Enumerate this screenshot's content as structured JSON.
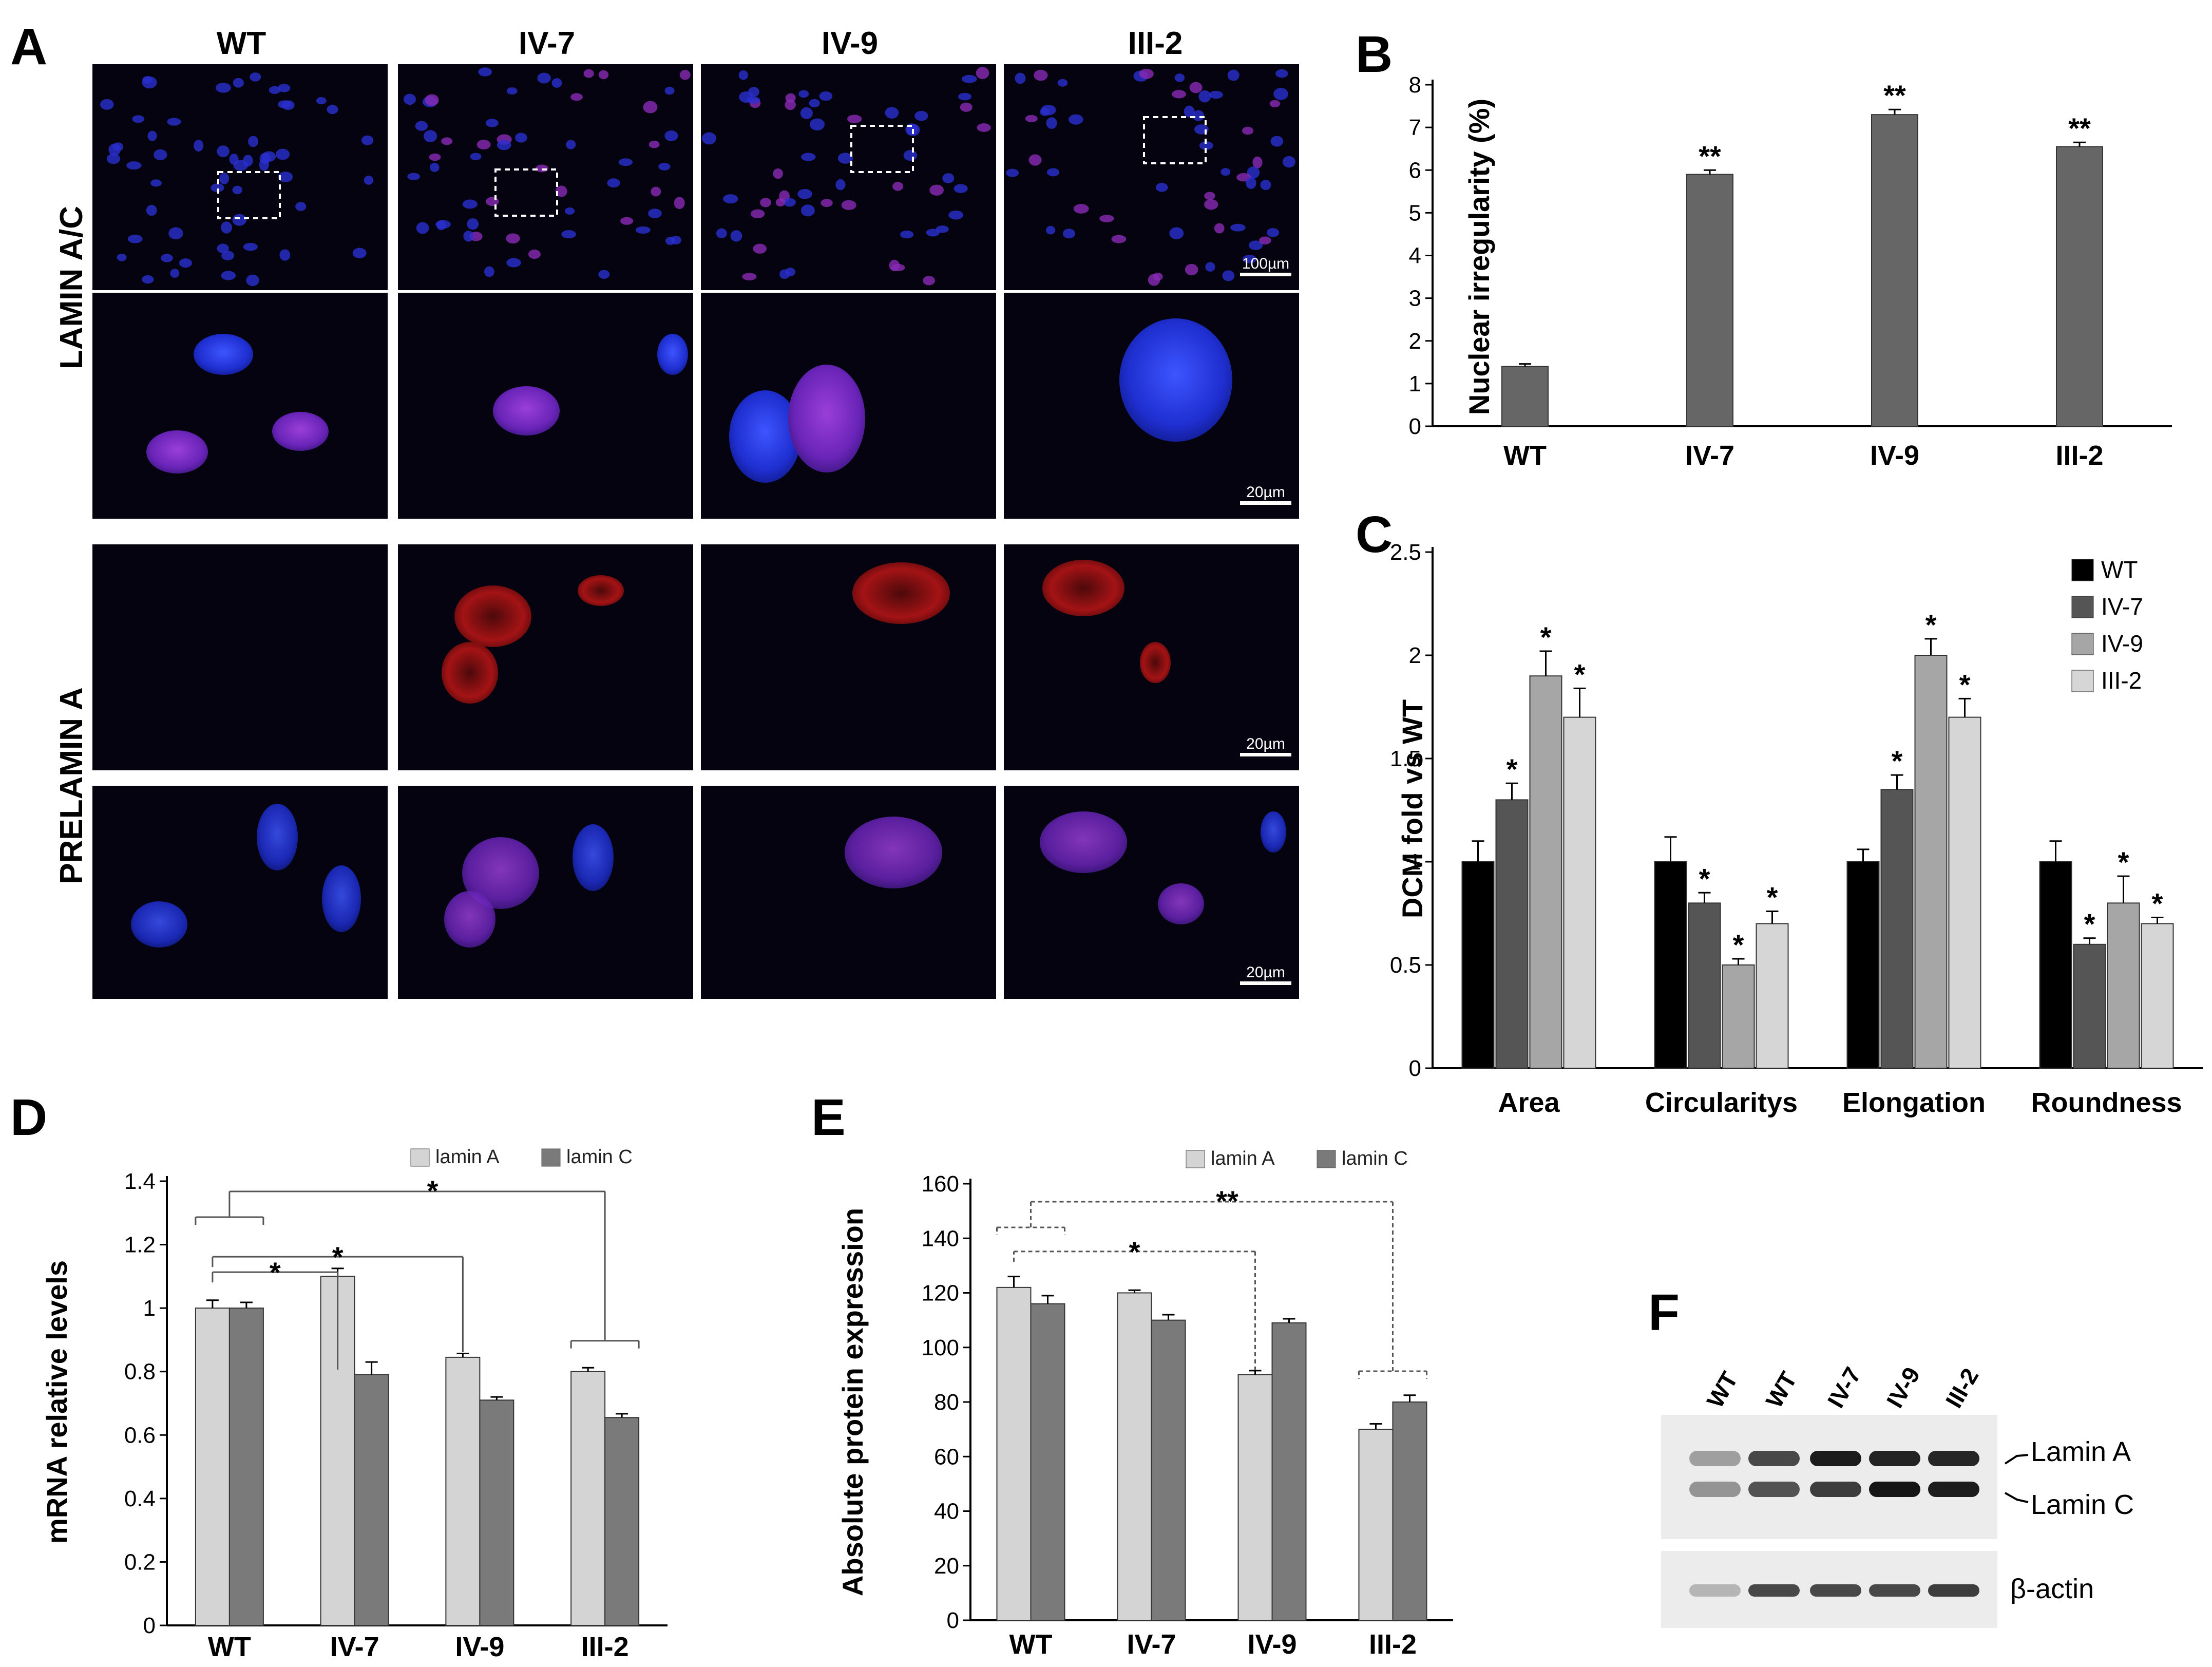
{
  "panel_a": {
    "label": "A",
    "columns": [
      "WT",
      "IV-7",
      "IV-9",
      "III-2"
    ],
    "rows": [
      "LAMIN A/C",
      "PRELAMIN A"
    ],
    "scale_bars": [
      "100µm",
      "20µm",
      "20µm",
      "20µm"
    ]
  },
  "panel_f": {
    "label": "F",
    "lanes": [
      "WT",
      "WT",
      "IV-7",
      "IV-9",
      "III-2"
    ],
    "bands": [
      "Lamin A",
      "Lamin C",
      "β-actin"
    ]
  },
  "chart_data": [
    {
      "panel": "B",
      "type": "bar",
      "categories": [
        "WT",
        "IV-7",
        "IV-9",
        "III-2"
      ],
      "values": [
        1.4,
        5.9,
        7.3,
        6.55
      ],
      "errors": [
        0.06,
        0.1,
        0.12,
        0.1
      ],
      "significance": [
        "",
        "**",
        "**",
        "**"
      ],
      "ylabel": "Nuclear irregularity (%)",
      "ylim": [
        0,
        8
      ],
      "yticks": [
        "0",
        "1",
        "2",
        "3",
        "4",
        "5",
        "6",
        "7",
        "8"
      ],
      "colors": [
        "#666666"
      ]
    },
    {
      "panel": "C",
      "type": "bar",
      "categories": [
        "Area",
        "Circularitys",
        "Elongation",
        "Roundness"
      ],
      "series": [
        {
          "name": "WT",
          "values": [
            1.0,
            1.0,
            1.0,
            1.0
          ],
          "errors": [
            0.1,
            0.12,
            0.06,
            0.1
          ],
          "significance": [
            "",
            "",
            "",
            ""
          ]
        },
        {
          "name": "IV-7",
          "values": [
            1.3,
            0.8,
            1.35,
            0.6
          ],
          "errors": [
            0.08,
            0.05,
            0.07,
            0.03
          ],
          "significance": [
            "*",
            "*",
            "*",
            "*"
          ]
        },
        {
          "name": "IV-9",
          "values": [
            1.9,
            0.5,
            2.0,
            0.8
          ],
          "errors": [
            0.12,
            0.03,
            0.08,
            0.13
          ],
          "significance": [
            "*",
            "*",
            "*",
            "*"
          ]
        },
        {
          "name": "III-2",
          "values": [
            1.7,
            0.7,
            1.7,
            0.7
          ],
          "errors": [
            0.14,
            0.06,
            0.09,
            0.03
          ],
          "significance": [
            "*",
            "*",
            "*",
            "*"
          ]
        }
      ],
      "ylabel": "DCM fold vs WT",
      "ylim": [
        0,
        2.5
      ],
      "yticks": [
        "0",
        "0.5",
        "1",
        "1.5",
        "2",
        "2.5"
      ],
      "legend": "top-right",
      "colors": [
        "#000000",
        "#555555",
        "#a6a6a6",
        "#d6d6d6"
      ]
    },
    {
      "panel": "D",
      "type": "bar",
      "categories": [
        "WT",
        "IV-7",
        "IV-9",
        "III-2"
      ],
      "series": [
        {
          "name": "lamin A",
          "values": [
            1.0,
            1.1,
            0.845,
            0.8
          ],
          "errors": [
            0.025,
            0.025,
            0.012,
            0.012
          ]
        },
        {
          "name": "lamin C",
          "values": [
            1.0,
            0.79,
            0.71,
            0.655
          ],
          "errors": [
            0.018,
            0.04,
            0.01,
            0.012
          ]
        }
      ],
      "comparisons": [
        {
          "label": "*",
          "from": "WT",
          "to": "III-2"
        },
        {
          "label": "*",
          "from": "WT",
          "to": "IV-7"
        },
        {
          "label": "*",
          "from": "WT",
          "to": "IV-9"
        }
      ],
      "ylabel": "mRNA relative levels",
      "ylim": [
        0,
        1.4
      ],
      "yticks": [
        "0",
        "0.2",
        "0.4",
        "0.6",
        "0.8",
        "1",
        "1.2",
        "1.4"
      ],
      "legend": "top-right",
      "colors": [
        "#d4d4d4",
        "#7a7a7a"
      ]
    },
    {
      "panel": "E",
      "type": "bar",
      "categories": [
        "WT",
        "IV-7",
        "IV-9",
        "III-2"
      ],
      "series": [
        {
          "name": "lamin A",
          "values": [
            122,
            120,
            90,
            70
          ],
          "errors": [
            4,
            1,
            1.5,
            2
          ]
        },
        {
          "name": "lamin C",
          "values": [
            116,
            110,
            109,
            80
          ],
          "errors": [
            3,
            2,
            1.5,
            2.5
          ]
        }
      ],
      "comparisons": [
        {
          "label": "**",
          "from": "WT",
          "to": "III-2"
        },
        {
          "label": "*",
          "from": "WT",
          "to": "IV-9"
        }
      ],
      "ylabel": "Absolute protein expression",
      "ylim": [
        0,
        160
      ],
      "yticks": [
        "0",
        "20",
        "40",
        "60",
        "80",
        "100",
        "120",
        "140",
        "160"
      ],
      "legend": "top-right",
      "colors": [
        "#d4d4d4",
        "#7a7a7a"
      ]
    }
  ]
}
